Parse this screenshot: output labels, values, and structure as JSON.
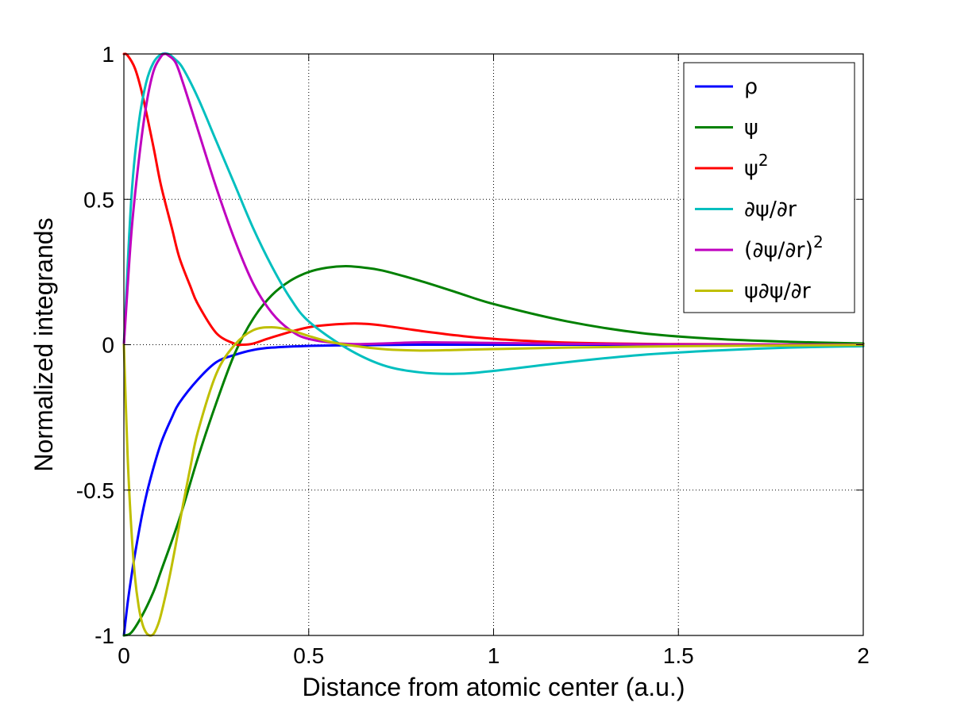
{
  "chart_data": {
    "type": "line",
    "xlabel": "Distance from atomic center (a.u.)",
    "ylabel": "Normalized integrands",
    "xlim": [
      0,
      2
    ],
    "ylim": [
      -1,
      1
    ],
    "xticks": [
      0,
      0.5,
      1,
      1.5,
      2
    ],
    "xtick_labels": [
      "0",
      "0.5",
      "1",
      "1.5",
      "2"
    ],
    "yticks": [
      -1,
      -0.5,
      0,
      0.5,
      1
    ],
    "ytick_labels": [
      "-1",
      "-0.5",
      "0",
      "0.5",
      "1"
    ],
    "grid": true,
    "legend_position": "top-right",
    "series": [
      {
        "name": "ρ",
        "color": "#0000ff",
        "x": [
          0,
          0.01,
          0.02,
          0.03,
          0.05,
          0.07,
          0.1,
          0.13,
          0.15,
          0.2,
          0.25,
          0.3,
          0.35,
          0.4,
          0.5,
          0.6,
          0.8,
          1.0,
          1.5,
          2.0
        ],
        "y": [
          -1,
          -0.89,
          -0.8,
          -0.72,
          -0.58,
          -0.47,
          -0.34,
          -0.25,
          -0.2,
          -0.12,
          -0.06,
          -0.035,
          -0.018,
          -0.01,
          -0.004,
          -0.002,
          0,
          0,
          0,
          0
        ]
      },
      {
        "name": "ψ",
        "color": "#008000",
        "x": [
          0,
          0.02,
          0.05,
          0.08,
          0.1,
          0.15,
          0.2,
          0.25,
          0.3,
          0.35,
          0.4,
          0.45,
          0.5,
          0.55,
          0.6,
          0.65,
          0.7,
          0.8,
          0.9,
          1.0,
          1.2,
          1.4,
          1.6,
          1.8,
          2.0
        ],
        "y": [
          -1,
          -0.99,
          -0.93,
          -0.85,
          -0.78,
          -0.6,
          -0.39,
          -0.2,
          -0.03,
          0.09,
          0.17,
          0.22,
          0.25,
          0.265,
          0.27,
          0.265,
          0.255,
          0.22,
          0.18,
          0.14,
          0.08,
          0.04,
          0.02,
          0.01,
          0.004
        ]
      },
      {
        "name": "ψ^2",
        "color": "#ff0000",
        "x": [
          0,
          0.01,
          0.03,
          0.05,
          0.08,
          0.1,
          0.13,
          0.15,
          0.18,
          0.2,
          0.25,
          0.3,
          0.32,
          0.35,
          0.4,
          0.5,
          0.6,
          0.65,
          0.7,
          0.8,
          0.9,
          1.0,
          1.2,
          1.5,
          2.0
        ],
        "y": [
          1,
          0.995,
          0.95,
          0.86,
          0.68,
          0.55,
          0.4,
          0.3,
          0.2,
          0.14,
          0.04,
          0.003,
          0,
          0.004,
          0.025,
          0.06,
          0.072,
          0.072,
          0.066,
          0.048,
          0.032,
          0.02,
          0.007,
          0.002,
          0
        ]
      },
      {
        "name": "∂ψ/∂r",
        "color": "#00bfbf",
        "x": [
          0,
          0.02,
          0.04,
          0.06,
          0.08,
          0.1,
          0.12,
          0.14,
          0.16,
          0.2,
          0.25,
          0.3,
          0.35,
          0.4,
          0.45,
          0.5,
          0.6,
          0.7,
          0.8,
          0.9,
          1.0,
          1.2,
          1.4,
          1.6,
          1.8,
          2.0
        ],
        "y": [
          0,
          0.5,
          0.76,
          0.9,
          0.97,
          0.998,
          1.0,
          0.98,
          0.95,
          0.85,
          0.7,
          0.55,
          0.4,
          0.27,
          0.16,
          0.08,
          -0.01,
          -0.07,
          -0.095,
          -0.1,
          -0.09,
          -0.06,
          -0.035,
          -0.02,
          -0.01,
          -0.005
        ]
      },
      {
        "name": "(∂ψ/∂r)^2",
        "color": "#bf00bf",
        "x": [
          0,
          0.02,
          0.04,
          0.06,
          0.08,
          0.1,
          0.11,
          0.12,
          0.14,
          0.16,
          0.2,
          0.25,
          0.3,
          0.35,
          0.4,
          0.45,
          0.5,
          0.6,
          0.7,
          0.8,
          1.0,
          1.2,
          1.5,
          2.0
        ],
        "y": [
          0,
          0.38,
          0.63,
          0.82,
          0.94,
          0.99,
          1.0,
          0.995,
          0.97,
          0.9,
          0.74,
          0.54,
          0.36,
          0.21,
          0.11,
          0.05,
          0.02,
          0.003,
          0.004,
          0.008,
          0.006,
          0.003,
          0.001,
          0
        ]
      },
      {
        "name": "ψ∂ψ/∂r",
        "color": "#bfbf00",
        "x": [
          0,
          0.01,
          0.02,
          0.03,
          0.04,
          0.05,
          0.06,
          0.07,
          0.08,
          0.09,
          0.1,
          0.12,
          0.14,
          0.16,
          0.18,
          0.2,
          0.25,
          0.3,
          0.35,
          0.4,
          0.45,
          0.5,
          0.55,
          0.6,
          0.7,
          0.8,
          0.9,
          1.0,
          1.2,
          1.5,
          2.0
        ],
        "y": [
          0,
          -0.38,
          -0.63,
          -0.8,
          -0.9,
          -0.96,
          -0.99,
          -1.0,
          -0.995,
          -0.97,
          -0.93,
          -0.82,
          -0.69,
          -0.55,
          -0.42,
          -0.3,
          -0.1,
          0,
          0.05,
          0.06,
          0.05,
          0.03,
          0.012,
          0,
          -0.015,
          -0.02,
          -0.018,
          -0.015,
          -0.01,
          -0.005,
          -0.001
        ]
      }
    ]
  }
}
